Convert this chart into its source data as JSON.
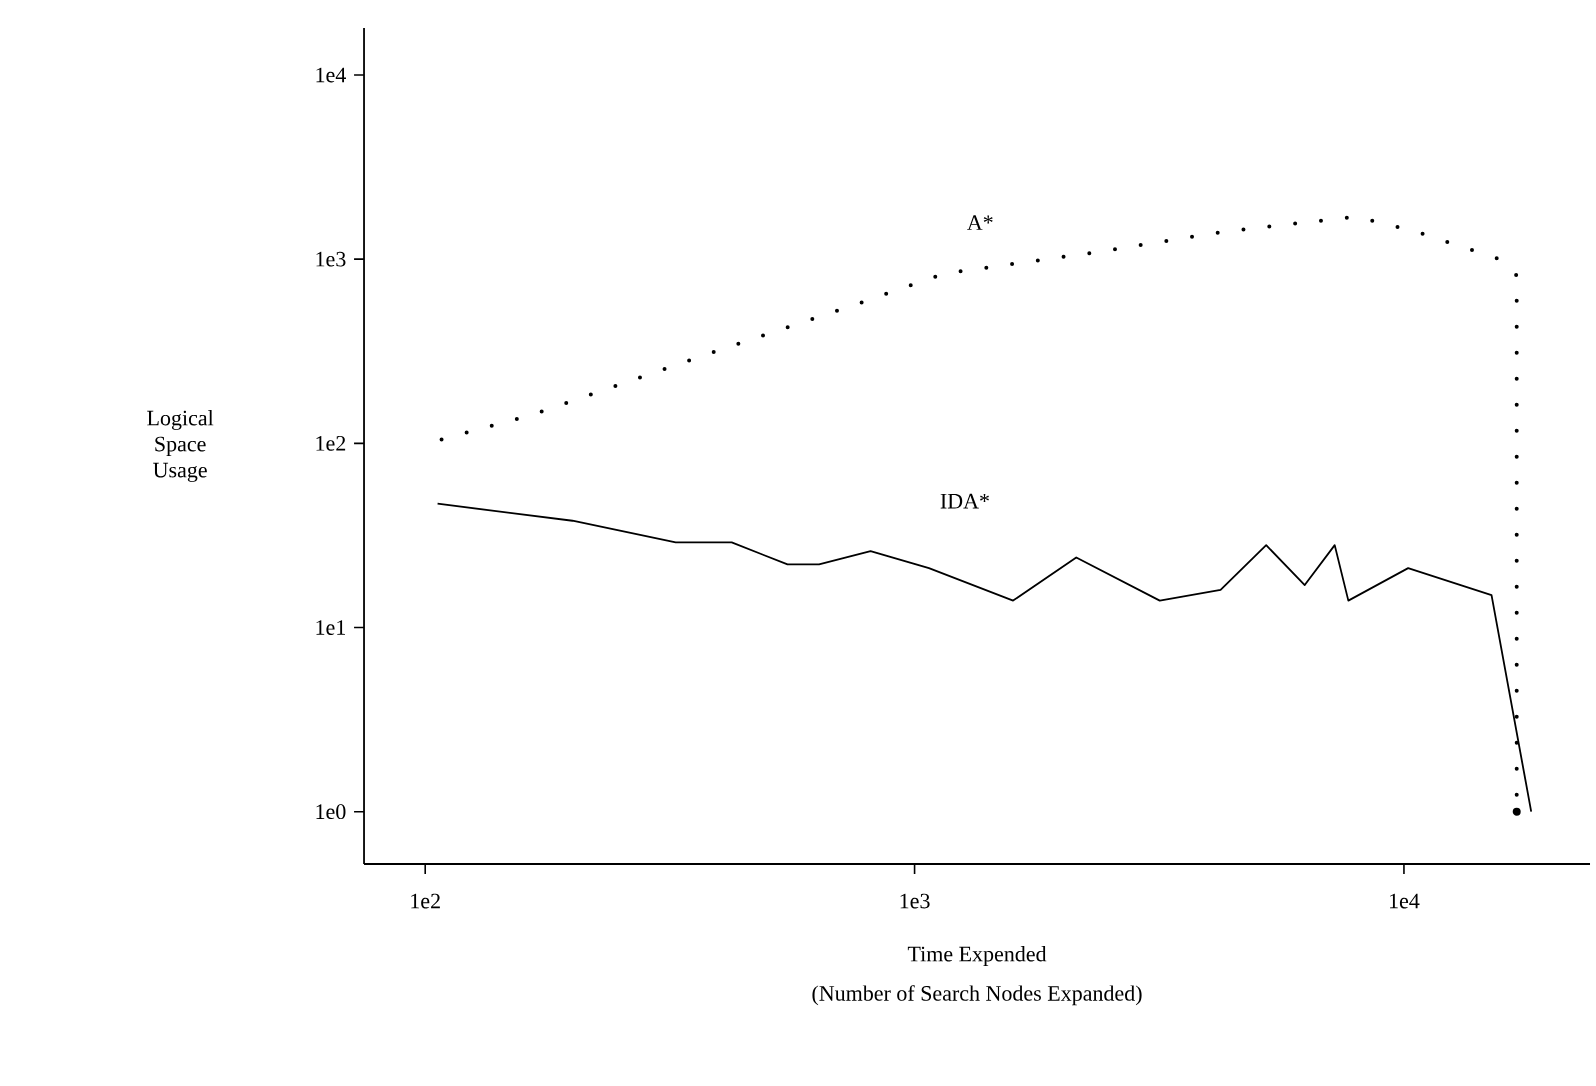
{
  "chart_data": {
    "type": "line",
    "log": "xy",
    "xlabel": "Time Expended",
    "ylabel": "Logical Space Usage",
    "annotations": [
      "(Number of Search Nodes Expanded)"
    ],
    "xlim": [
      75,
      24000
    ],
    "ylim": [
      0.52,
      18000
    ],
    "xticks": [
      {
        "value": 100,
        "label": "1e2"
      },
      {
        "value": 1000,
        "label": "1e3"
      },
      {
        "value": 10000,
        "label": "1e4"
      }
    ],
    "yticks": [
      {
        "value": 1,
        "label": "1e0"
      },
      {
        "value": 10,
        "label": "1e1"
      },
      {
        "value": 100,
        "label": "1e2"
      },
      {
        "value": 1000,
        "label": "1e3"
      },
      {
        "value": 10000,
        "label": "1e4"
      }
    ],
    "series": [
      {
        "name": "A*",
        "color": "#000000",
        "line_style": "dotted",
        "x": [
          108,
          164,
          392,
          769,
          1150,
          2290,
          4370,
          7960,
          10500,
          15700,
          17000,
          17000
        ],
        "values": [
          105,
          142,
          316,
          575,
          835,
          1080,
          1420,
          1700,
          1420,
          1000,
          815,
          1
        ]
      },
      {
        "name": "IDA*",
        "color": "#000000",
        "line_style": "solid",
        "x": [
          106,
          200,
          325,
          423,
          550,
          638,
          813,
          1070,
          1590,
          2140,
          3170,
          4220,
          5230,
          6270,
          7220,
          7700,
          10200,
          15100,
          18200
        ],
        "values": [
          47,
          38,
          29,
          29,
          22,
          22,
          26,
          21,
          14,
          24,
          14,
          16,
          28,
          17,
          28,
          14,
          21,
          15,
          1
        ]
      }
    ]
  }
}
